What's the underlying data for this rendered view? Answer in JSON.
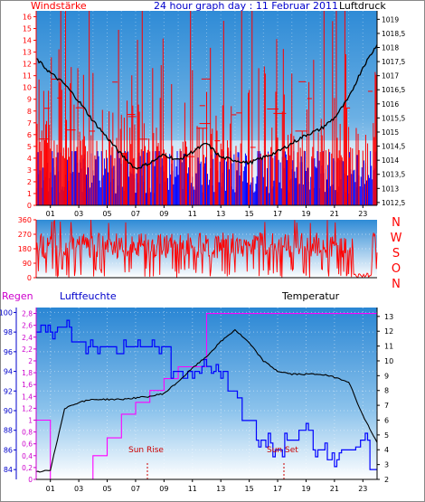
{
  "title": "24 hour graph day : 11 Februar 2011",
  "colors": {
    "wind": "#ff0000",
    "pressure": "#000000",
    "humidity": "#0000ff",
    "rain": "#ff00ff",
    "temp": "#000000",
    "axis_left": "#ff0000",
    "sky_top": "#1e7fd0",
    "sky_bottom": "#ffffff"
  },
  "x_ticks": [
    "01",
    "03",
    "05",
    "07",
    "09",
    "11",
    "13",
    "15",
    "17",
    "19",
    "21",
    "23"
  ],
  "top_chart": {
    "left_label": "Windstärke",
    "right_label": "Luftdruck",
    "left_ticks": [
      "0",
      "1",
      "2",
      "3",
      "4",
      "5",
      "6",
      "7",
      "8",
      "9",
      "10",
      "11",
      "12",
      "13",
      "14",
      "15",
      "16"
    ],
    "right_ticks": [
      "1012,5",
      "1013",
      "1013,5",
      "1014",
      "1014,5",
      "1015",
      "1015,5",
      "1016",
      "1016,5",
      "1017",
      "1017,5",
      "1018",
      "1018,5",
      "1019"
    ]
  },
  "mid_chart": {
    "left_ticks": [
      "0",
      "90",
      "180",
      "270",
      "360"
    ],
    "directions": [
      "N",
      "W",
      "S",
      "O",
      "N"
    ]
  },
  "bottom_chart": {
    "label_rain": "Regen",
    "label_humidity": "Luftfeuchte",
    "label_temp": "Temperatur",
    "humidity_ticks": [
      "84",
      "86",
      "88",
      "90",
      "92",
      "94",
      "96",
      "98",
      "100"
    ],
    "rain_ticks": [
      "0",
      "0,2",
      "0,4",
      "0,6",
      "0,8",
      "1",
      "1,2",
      "1,4",
      "1,6",
      "1,8",
      "2",
      "2,2",
      "2,4",
      "2,6",
      "2,8"
    ],
    "temp_ticks": [
      "2",
      "3",
      "4",
      "5",
      "6",
      "7",
      "8",
      "9",
      "10",
      "11",
      "12",
      "13"
    ],
    "sun_rise": "Sun Rise",
    "sun_set": "Sun Set"
  },
  "chart_data": [
    {
      "type": "line",
      "title": "24 hour graph day : 11 Februar 2011",
      "ylabel": "Windstärke",
      "y2label": "Luftdruck",
      "ylim": [
        0,
        16.5
      ],
      "y2lim": [
        1012.4,
        1019.3
      ],
      "x": [
        0,
        1,
        2,
        3,
        4,
        5,
        6,
        7,
        8,
        9,
        10,
        11,
        12,
        13,
        14,
        15,
        16,
        17,
        18,
        19,
        20,
        21,
        22,
        23,
        24
      ],
      "series": [
        {
          "values": [
            1017.6,
            1017.1,
            1016.7,
            1016.1,
            1015.4,
            1014.8,
            1014.2,
            1013.7,
            1013.9,
            1014.2,
            1014.0,
            1014.3,
            1014.6,
            1014.1,
            1014.0,
            1013.9,
            1014.1,
            1014.3,
            1014.6,
            1014.9,
            1015.1,
            1015.5,
            1016.2,
            1017.3,
            1018.1
          ]
        }
      ]
    },
    {
      "type": "line",
      "ylim": [
        0,
        360
      ],
      "x": [
        0,
        24
      ]
    },
    {
      "type": "line",
      "ylabel": "Regen",
      "y2label": "Temperatur",
      "x": [
        0,
        1,
        2,
        3,
        4,
        5,
        6,
        7,
        8,
        9,
        10,
        11,
        12,
        13,
        14,
        15,
        16,
        17,
        18,
        19,
        20,
        21,
        22,
        23,
        24
      ],
      "series": [
        {
          "name": "Luftfeuchte",
          "values": [
            98,
            98,
            98.5,
            97,
            96.5,
            96.5,
            96.5,
            96.5,
            96.5,
            96.5,
            94,
            94,
            94.5,
            94,
            92,
            89,
            87,
            86,
            87,
            88,
            86,
            85,
            86,
            87,
            84
          ]
        },
        {
          "name": "Regen",
          "values": [
            1.0,
            0.0,
            0.0,
            0.0,
            0.4,
            0.7,
            1.1,
            1.3,
            1.5,
            1.7,
            1.9,
            1.9,
            2.8,
            2.8,
            2.8,
            2.8,
            2.8,
            2.8,
            2.8,
            2.8,
            2.8,
            2.8,
            2.8,
            2.8,
            2.8
          ]
        },
        {
          "name": "Temperatur",
          "values": [
            2.5,
            2.6,
            6.8,
            7.2,
            7.4,
            7.4,
            7.4,
            7.5,
            7.6,
            7.8,
            8.6,
            9.5,
            10.3,
            11.3,
            12.1,
            11.2,
            10.0,
            9.3,
            9.1,
            9.1,
            9.1,
            8.9,
            8.6,
            6.3,
            4.5
          ]
        }
      ]
    }
  ]
}
